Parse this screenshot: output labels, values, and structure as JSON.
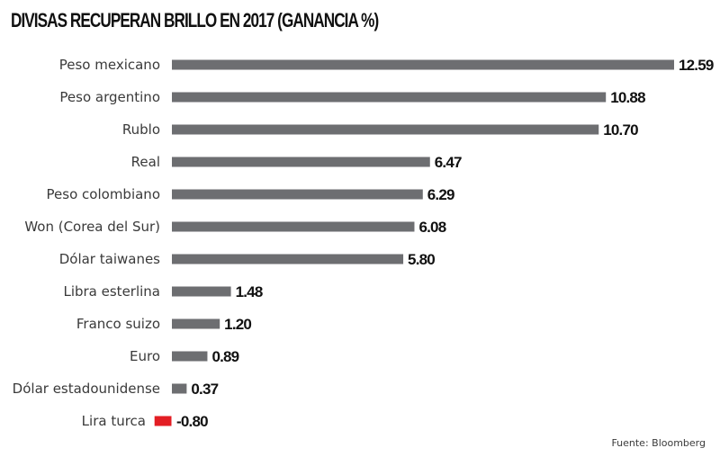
{
  "title": "DIVISAS RECUPERAN BRILLO EN 2017 (GANANCIA %)",
  "source": "Fuente: Bloomberg",
  "colors": {
    "positive": "#6d6e71",
    "negative": "#e31e24"
  },
  "chart_data": {
    "type": "bar",
    "orientation": "horizontal",
    "title": "DIVISAS RECUPERAN BRILLO EN 2017 (GANANCIA %)",
    "categories": [
      "Peso mexicano",
      "Peso argentino",
      "Rublo",
      "Real",
      "Peso colombiano",
      "Won (Corea del Sur)",
      "Dólar taiwanes",
      "Libra esterlina",
      "Franco suizo",
      "Euro",
      "Dólar estadounidense",
      "Lira turca"
    ],
    "values": [
      12.59,
      10.88,
      10.7,
      6.47,
      6.29,
      6.08,
      5.8,
      1.48,
      1.2,
      0.89,
      0.37,
      -0.8
    ],
    "value_labels": [
      "12.59",
      "10.88",
      "10.70",
      "6.47",
      "6.29",
      "6.08",
      "5.80",
      "1.48",
      "1.20",
      "0.89",
      "0.37",
      "-0.80"
    ],
    "xlim": [
      -0.8,
      12.59
    ],
    "grid": false,
    "legend": "none"
  }
}
